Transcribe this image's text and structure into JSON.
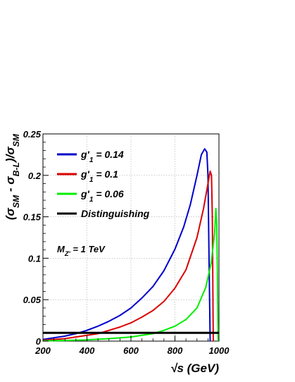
{
  "chart_data": {
    "type": "line",
    "xlabel": "√s (GeV)",
    "ylabel": "(σ_SM - σ_B-L)/σ_SM",
    "xlim": [
      200,
      1000
    ],
    "ylim": [
      0,
      0.25
    ],
    "x_ticks": [
      "200",
      "400",
      "600",
      "800",
      "1000"
    ],
    "y_ticks": [
      "0",
      "0.05",
      "0.1",
      "0.15",
      "0.2",
      "0.25"
    ],
    "grid": true,
    "legend_position": "top-left",
    "annotation": "M_Z' = 1 TeV",
    "series": [
      {
        "name": "g'_1 = 0.14",
        "color": "#0000cc",
        "x": [
          200,
          250,
          300,
          350,
          400,
          450,
          500,
          550,
          600,
          650,
          700,
          750,
          800,
          840,
          870,
          900,
          920,
          935,
          945,
          950,
          955,
          960
        ],
        "y": [
          0.002,
          0.004,
          0.006,
          0.009,
          0.013,
          0.018,
          0.024,
          0.031,
          0.04,
          0.052,
          0.066,
          0.085,
          0.111,
          0.138,
          0.165,
          0.2,
          0.225,
          0.232,
          0.228,
          0.2,
          0.1,
          0.0
        ]
      },
      {
        "name": "g'_1 = 0.1",
        "color": "#dd0000",
        "x": [
          200,
          250,
          300,
          350,
          400,
          450,
          500,
          550,
          600,
          650,
          700,
          750,
          800,
          850,
          900,
          930,
          950,
          960,
          966,
          970,
          974
        ],
        "y": [
          0.001,
          0.002,
          0.003,
          0.005,
          0.007,
          0.009,
          0.013,
          0.017,
          0.022,
          0.029,
          0.037,
          0.048,
          0.064,
          0.086,
          0.125,
          0.16,
          0.19,
          0.205,
          0.2,
          0.15,
          0.0
        ]
      },
      {
        "name": "g'_1 = 0.06",
        "color": "#00ee00",
        "x": [
          200,
          300,
          400,
          500,
          600,
          650,
          700,
          750,
          800,
          850,
          900,
          940,
          965,
          980,
          986,
          990,
          993,
          996
        ],
        "y": [
          0.0003,
          0.0008,
          0.0015,
          0.003,
          0.005,
          0.007,
          0.009,
          0.013,
          0.018,
          0.026,
          0.04,
          0.065,
          0.095,
          0.13,
          0.16,
          0.14,
          0.08,
          0.0
        ]
      },
      {
        "name": "Distinguishing",
        "color": "#000000",
        "x": [
          200,
          1000
        ],
        "y": [
          0.01,
          0.01
        ]
      }
    ]
  }
}
